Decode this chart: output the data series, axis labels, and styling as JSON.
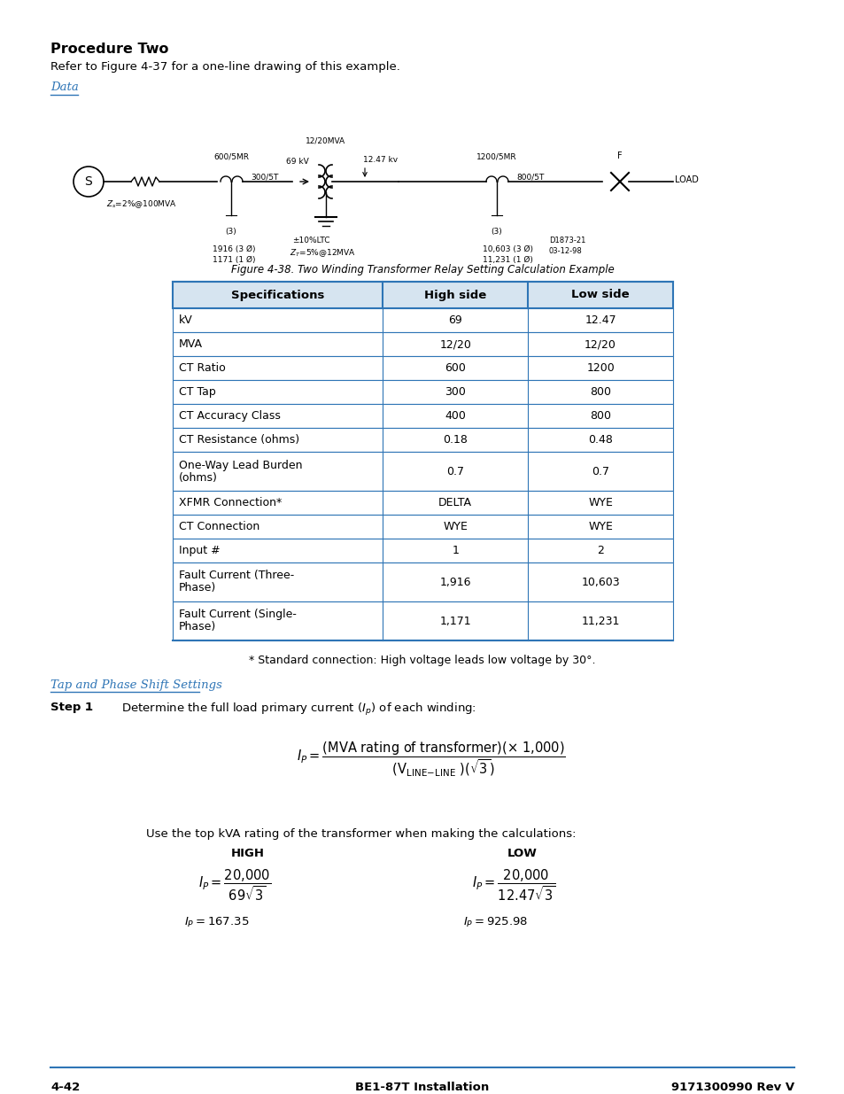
{
  "title": "Procedure Two",
  "subtitle": "Refer to Figure 4-37 for a one-line drawing of this example.",
  "data_label": "Data",
  "figure_caption": "Figure 4-38. Two Winding Transformer Relay Setting Calculation Example",
  "table_headers": [
    "Specifications",
    "High side",
    "Low side"
  ],
  "table_rows": [
    [
      "kV",
      "69",
      "12.47"
    ],
    [
      "MVA",
      "12/20",
      "12/20"
    ],
    [
      "CT Ratio",
      "600",
      "1200"
    ],
    [
      "CT Tap",
      "300",
      "800"
    ],
    [
      "CT Accuracy Class",
      "400",
      "800"
    ],
    [
      "CT Resistance (ohms)",
      "0.18",
      "0.48"
    ],
    [
      "One-Way Lead Burden\n(ohms)",
      "0.7",
      "0.7"
    ],
    [
      "XFMR Connection*",
      "DELTA",
      "WYE"
    ],
    [
      "CT Connection",
      "WYE",
      "WYE"
    ],
    [
      "Input #",
      "1",
      "2"
    ],
    [
      "Fault Current (Three-\nPhase)",
      "1,916",
      "10,603"
    ],
    [
      "Fault Current (Single-\nPhase)",
      "1,171",
      "11,231"
    ]
  ],
  "footnote": "* Standard connection: High voltage leads low voltage by 30°.",
  "tap_heading": "Tap and Phase Shift Settings",
  "footer_left": "4-42",
  "footer_center": "BE1-87T Installation",
  "footer_right": "9171300990 Rev V",
  "bg_color": "#ffffff",
  "table_header_bg": "#d6e4f0",
  "table_border_color": "#2e75b6",
  "blue_link_color": "#2e75b6",
  "text_color": "#000000"
}
